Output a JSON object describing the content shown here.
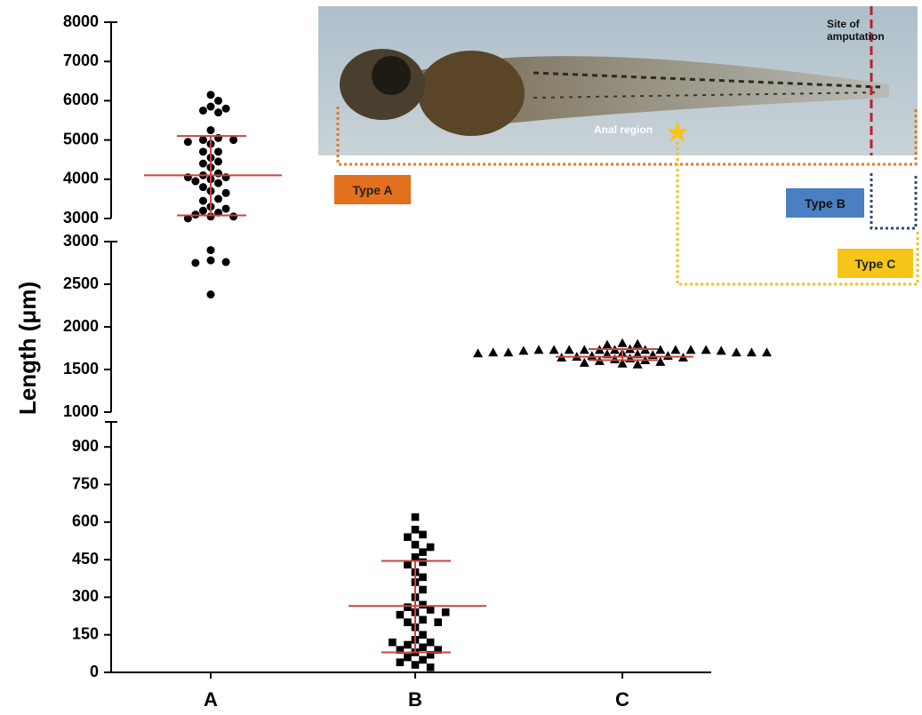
{
  "chart_data": {
    "type": "dot",
    "y_label": "Length  (μm)",
    "categories": [
      "A",
      "B",
      "C"
    ],
    "y_segments": [
      {
        "ylim": [
          3000,
          8000
        ],
        "yticks": [
          3000,
          4000,
          5000,
          6000,
          7000,
          8000
        ]
      },
      {
        "ylim": [
          1000,
          3000
        ],
        "yticks": [
          1000,
          1500,
          2000,
          2500,
          3000
        ]
      },
      {
        "ylim": [
          0,
          1000
        ],
        "yticks": [
          0,
          150,
          300,
          450,
          600,
          750,
          900
        ]
      }
    ],
    "point_color": "#000000",
    "line_color": "#c9453f",
    "groups": [
      {
        "marker": "circle",
        "mean": 4100,
        "sd_range": [
          3080,
          5100
        ],
        "values": [
          6150,
          6000,
          5850,
          5800,
          5750,
          5700,
          5250,
          5050,
          5000,
          5000,
          4950,
          4900,
          4700,
          4700,
          4550,
          4450,
          4400,
          4300,
          4150,
          4100,
          4050,
          4050,
          4000,
          3950,
          3900,
          3800,
          3700,
          3650,
          3500,
          3450,
          3300,
          3250,
          3200,
          3150,
          3100,
          3050,
          3050,
          3000,
          2900,
          2780,
          2760,
          2750,
          2380
        ]
      },
      {
        "marker": "square",
        "mean": 265,
        "sd_range": [
          80,
          445
        ],
        "values": [
          620,
          570,
          550,
          540,
          510,
          500,
          480,
          460,
          440,
          430,
          400,
          380,
          360,
          330,
          300,
          270,
          260,
          250,
          240,
          230,
          210,
          200,
          180,
          150,
          130,
          120,
          110,
          100,
          90,
          80,
          70,
          60,
          50,
          40,
          30,
          20,
          120,
          200,
          240,
          90
        ]
      },
      {
        "marker": "triangle",
        "mean": 1650,
        "sd_range": [
          1610,
          1740
        ],
        "values": [
          1810,
          1800,
          1790,
          1740,
          1730,
          1730,
          1730,
          1730,
          1730,
          1730,
          1730,
          1730,
          1730,
          1730,
          1730,
          1720,
          1720,
          1700,
          1700,
          1700,
          1700,
          1700,
          1690,
          1690,
          1680,
          1680,
          1670,
          1660,
          1660,
          1650,
          1640,
          1640,
          1630,
          1620,
          1610,
          1600,
          1590,
          1580,
          1570,
          1560
        ]
      }
    ]
  },
  "inset": {
    "site_label": "Site of amputation",
    "anal_label": "Anal region",
    "type_a": "Type A",
    "type_b": "Type B",
    "type_c": "Type C"
  }
}
